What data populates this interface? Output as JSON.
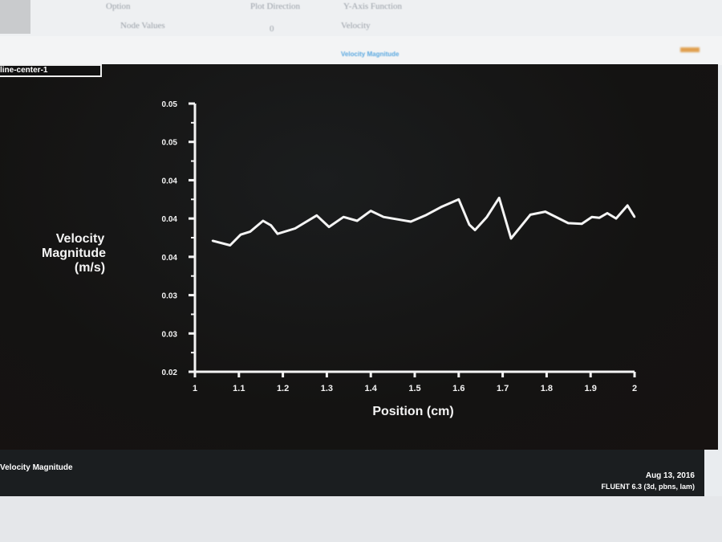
{
  "background_ui": {
    "row1": [
      "Option",
      "Plot Direction",
      "Y-Axis Function"
    ],
    "row2": [
      "Node Values",
      "0",
      "Velocity"
    ],
    "window_title": "Velocity Magnitude",
    "surface_tag": "line-center-1"
  },
  "footer": {
    "quantity": "Velocity Magnitude",
    "date": "Aug 13, 2016",
    "version": "FLUENT 6.3 (3d, pbns, lam)"
  },
  "colors": {
    "plot_bg": "#141312",
    "line": "#f4f4f4"
  },
  "chart_data": {
    "type": "line",
    "xlabel": "Position (cm)",
    "ylabel": [
      "Velocity",
      "Magnitude",
      "(m/s)"
    ],
    "xlim": [
      1,
      2
    ],
    "ylim": [
      0.02,
      0.055
    ],
    "xticks": [
      "1",
      "1.1",
      "1.2",
      "1.3",
      "1.4",
      "1.5",
      "1.6",
      "1.7",
      "1.8",
      "1.9",
      "2"
    ],
    "yticks": [
      "0.02",
      "0.03",
      "0.03",
      "0.04",
      "0.04",
      "0.04",
      "0.05",
      "0.05"
    ],
    "grid": false,
    "x": [
      1.04,
      1.08,
      1.104,
      1.126,
      1.155,
      1.173,
      1.188,
      1.228,
      1.277,
      1.305,
      1.338,
      1.369,
      1.4,
      1.429,
      1.491,
      1.524,
      1.56,
      1.6,
      1.624,
      1.637,
      1.664,
      1.692,
      1.719,
      1.763,
      1.797,
      1.849,
      1.88,
      1.903,
      1.92,
      1.938,
      1.958,
      1.984,
      2.0
    ],
    "y": [
      0.0371,
      0.0365,
      0.0379,
      0.0383,
      0.0397,
      0.0391,
      0.038,
      0.0387,
      0.0404,
      0.0389,
      0.0402,
      0.0397,
      0.041,
      0.0402,
      0.0396,
      0.0404,
      0.0415,
      0.0425,
      0.0392,
      0.0385,
      0.0402,
      0.0427,
      0.0374,
      0.0405,
      0.0409,
      0.0394,
      0.0393,
      0.0402,
      0.0401,
      0.0407,
      0.04,
      0.0417,
      0.0402
    ]
  }
}
